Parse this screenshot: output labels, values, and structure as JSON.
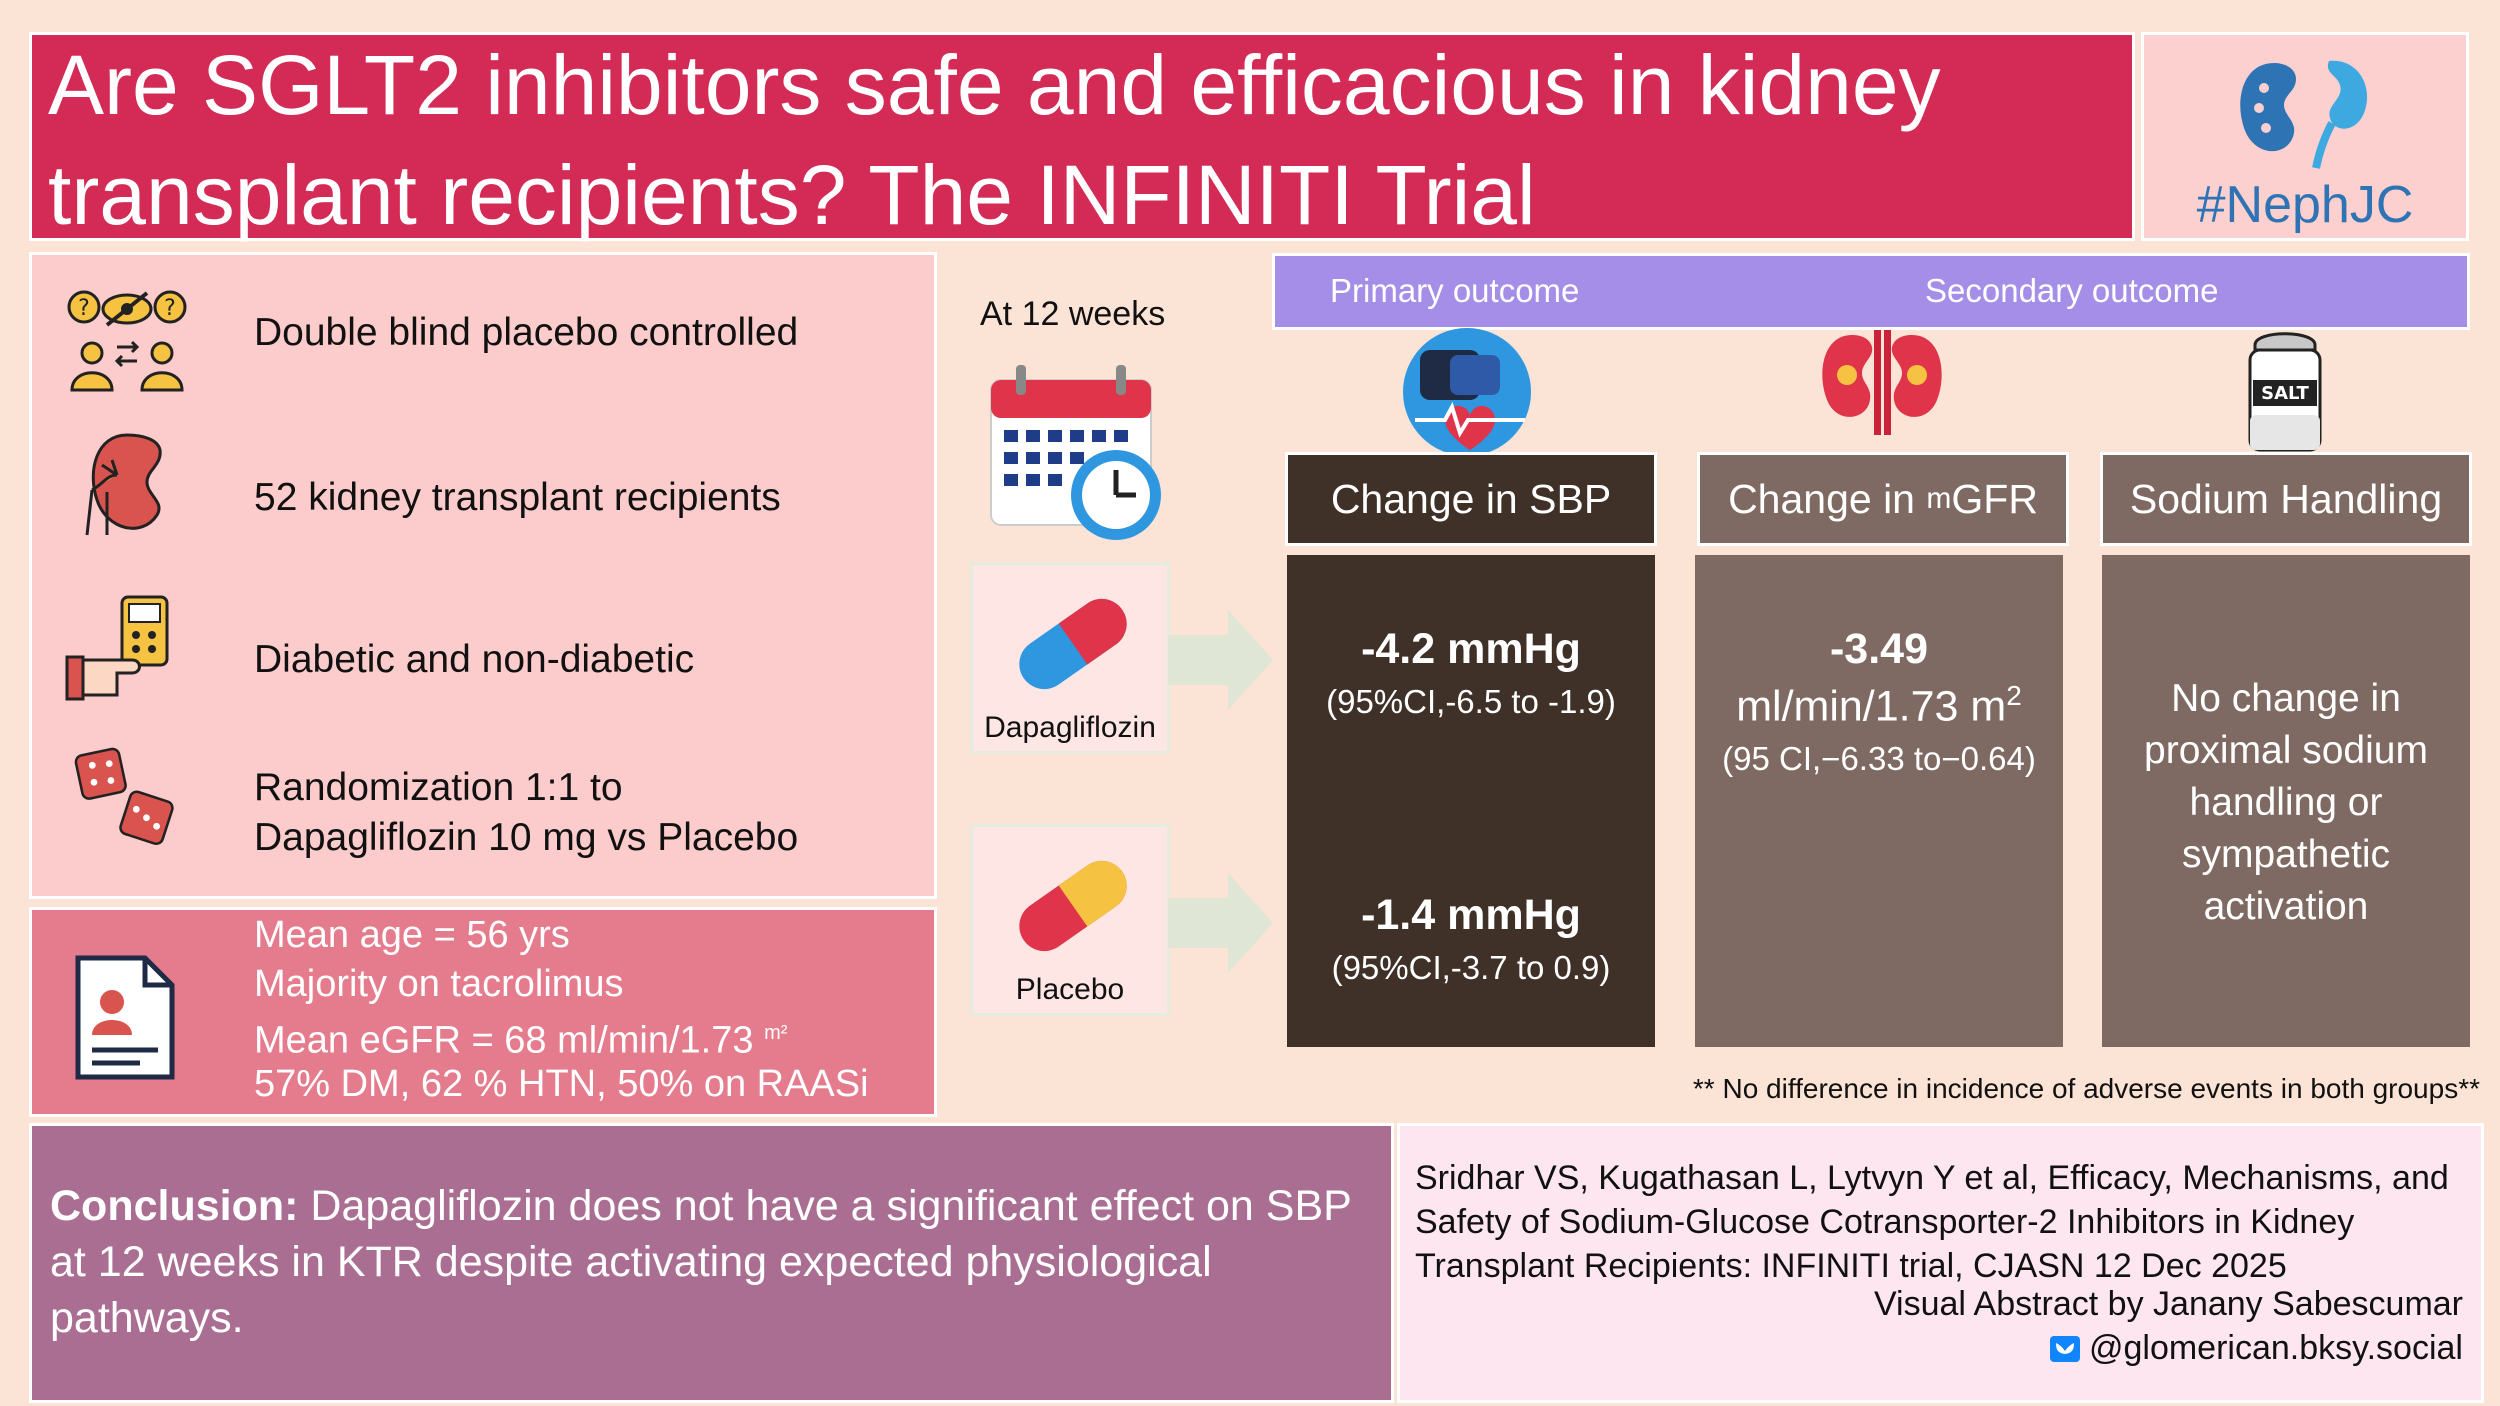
{
  "title": "Are SGLT2 inhibitors safe and efficacious in kidney transplant recipients? The INFINITI Trial",
  "logo": {
    "text": "#NephJC"
  },
  "design": [
    {
      "icon": "blinded-people-icon",
      "text": "Double blind placebo controlled"
    },
    {
      "icon": "kidney-transplant-icon",
      "text": "52 kidney transplant recipients"
    },
    {
      "icon": "glucometer-icon",
      "text": "Diabetic and non-diabetic"
    },
    {
      "icon": "dice-icon",
      "line1": "Randomization 1:1 to",
      "line2": "Dapagliflozin 10 mg vs Placebo"
    }
  ],
  "baseline": {
    "icon": "patient-record-icon",
    "line1": "Mean age =  56 yrs",
    "line2": "Majority on tacrolimus",
    "line3": "Mean eGFR = 68 ml/min/1.73",
    "line3_sup": "m²",
    "line4": "57% DM, 62 % HTN, 50% on RAASi"
  },
  "timepoint": "At 12 weeks",
  "arms": {
    "dapagliflozin": "Dapagliflozin",
    "placebo": "Placebo"
  },
  "outcomes": {
    "primary_label": "Primary outcome",
    "secondary_label": "Secondary outcome",
    "sbp": {
      "title": "Change in SBP",
      "dapa_value": "-4.2 mmHg",
      "dapa_ci": "(95%CI,-6.5 to -1.9)",
      "placebo_value": "-1.4 mmHg",
      "placebo_ci": "(95%CI,-3.7 to 0.9)"
    },
    "mgfr": {
      "title_prefix": "Change in ",
      "title_small": "m",
      "title_suffix": "GFR",
      "value": "-3.49",
      "unit": "ml/min/1.73 m",
      "unit_sup": "2",
      "ci": "(95 CI,−6.33 to−0.64)"
    },
    "sodium": {
      "title": "Sodium Handling",
      "text": "No change in proximal sodium handling or sympathetic activation",
      "salt_label": "SALT"
    }
  },
  "adverse_note": "** No difference in incidence of adverse events in both groups**",
  "conclusion": {
    "label": "Conclusion:",
    "text": " Dapagliflozin does not have a significant effect on SBP at 12 weeks in KTR despite activating expected physiological pathways."
  },
  "citation": {
    "text": "Sridhar VS, Kugathasan L, Lytvyn Y et al, Efficacy, Mechanisms, and Safety of Sodium-Glucose Cotransporter-2 Inhibitors in Kidney Transplant Recipients: INFINITI  trial, CJASN 12 Dec 2025",
    "credit": "Visual Abstract by Janany Sabescumar",
    "handle": "@glomerican.bksy.social"
  },
  "colors": {
    "title_bg": "#d42a56",
    "design_bg": "#fccbcb",
    "baseline_bg": "#e57c8d",
    "band_bg": "#a58ee8",
    "dark_box": "#3f3028",
    "mid_box": "#7e6a62",
    "conclusion_bg": "#aa6e92"
  }
}
